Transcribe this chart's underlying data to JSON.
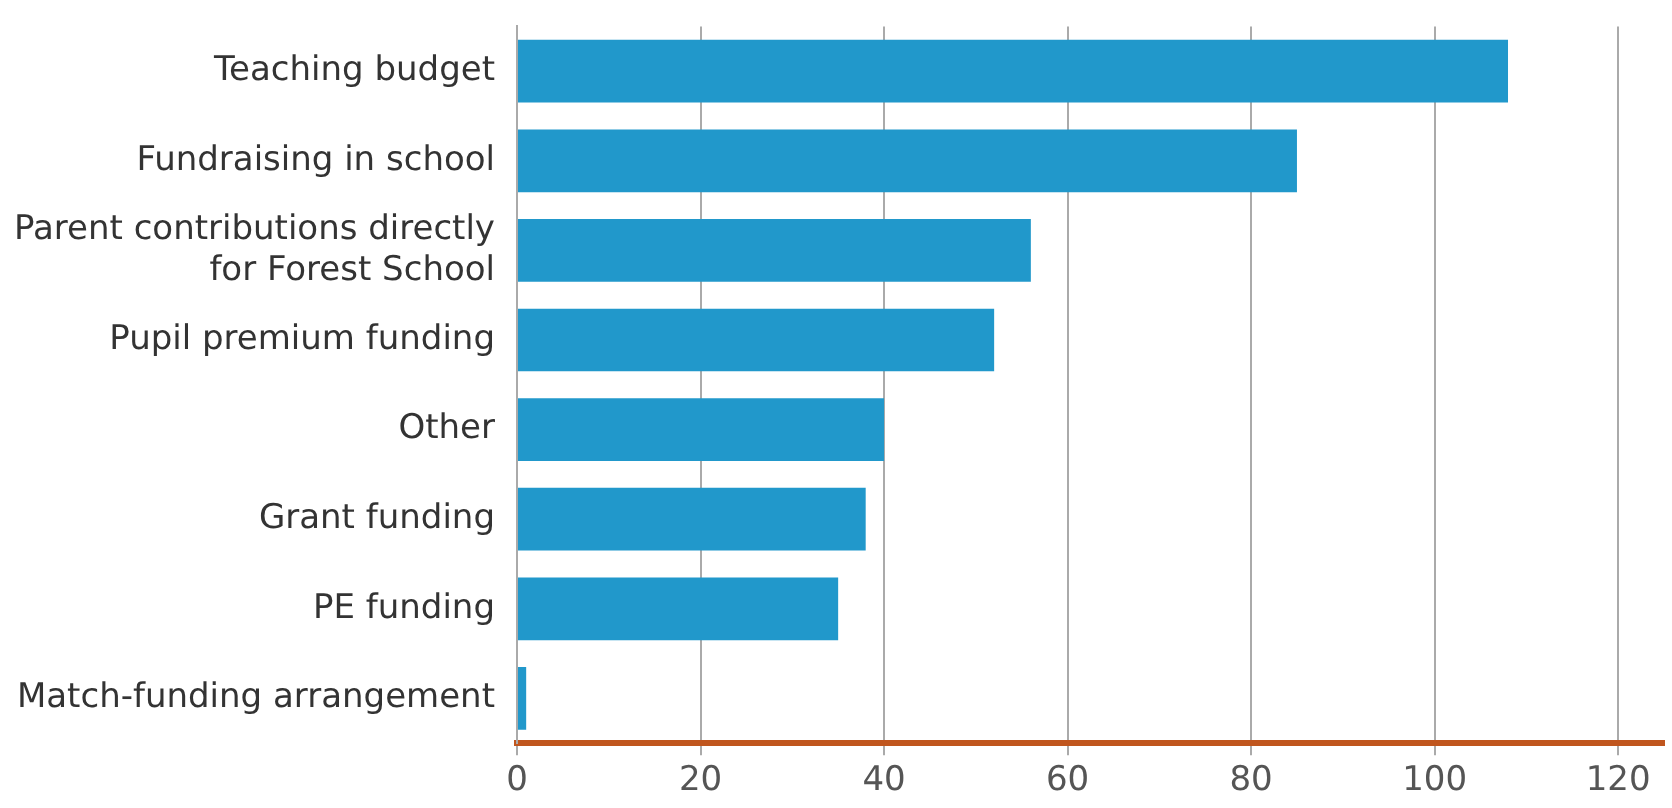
{
  "chart_data": {
    "type": "bar",
    "orientation": "horizontal",
    "categories": [
      "Teaching budget",
      "Fundraising in school",
      "Parent contributions directly for Forest School",
      "Pupil premium funding",
      "Other",
      "Grant funding",
      "PE funding",
      "Match-funding arrangement"
    ],
    "values": [
      108,
      85,
      56,
      52,
      40,
      38,
      35,
      1
    ],
    "color": "#2198cb",
    "xlim": [
      0,
      125
    ],
    "xticks": [
      0,
      20,
      40,
      60,
      80,
      100,
      120
    ],
    "grid": "x",
    "legend": false
  }
}
